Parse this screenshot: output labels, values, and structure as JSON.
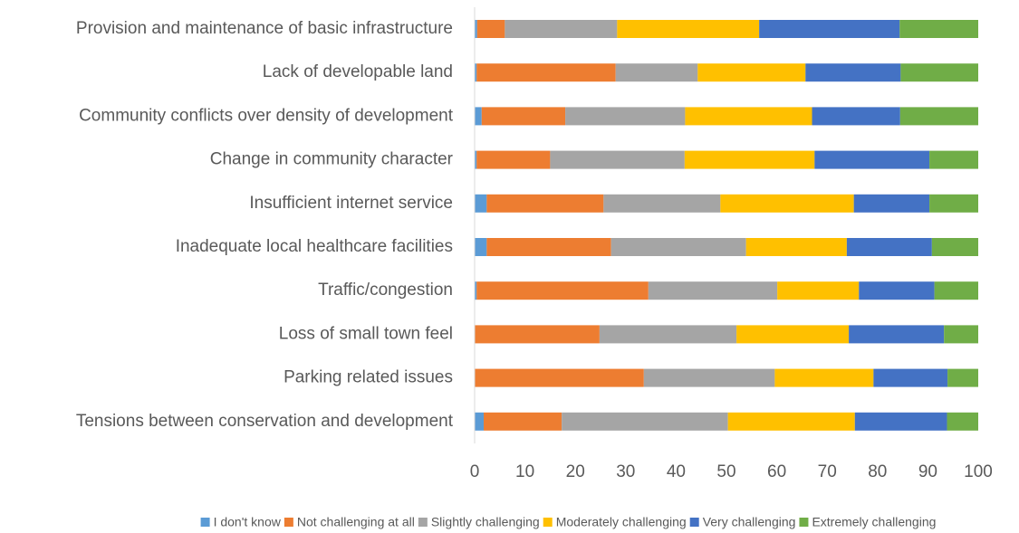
{
  "chart_data": {
    "type": "stacked_barh",
    "categories": [
      "Provision and maintenance of basic infrastructure",
      "Lack of developable land",
      "Community conflicts over  density of development",
      "Change in community character",
      "Insufficient internet service",
      "Inadequate local healthcare facilities",
      "Traffic/congestion",
      "Loss of small town feel",
      "Parking related issues",
      "Tensions between conservation and development"
    ],
    "series": [
      {
        "name": "I don't know",
        "color": "#5b9bd5",
        "values": [
          0.5,
          0.4,
          1.4,
          0.4,
          2.4,
          2.4,
          0.4,
          0,
          0,
          1.8
        ]
      },
      {
        "name": "Not challenging at all",
        "color": "#ed7d31",
        "values": [
          5.5,
          27.6,
          16.6,
          14.6,
          23.2,
          24.7,
          34.1,
          24.8,
          33.6,
          15.5
        ]
      },
      {
        "name": "Slightly challenging",
        "color": "#a5a5a5",
        "values": [
          22.3,
          16.3,
          23.8,
          26.7,
          23.2,
          26.8,
          25.6,
          27.2,
          26,
          33
        ]
      },
      {
        "name": "Moderately challenging",
        "color": "#ffc000",
        "values": [
          28.2,
          21.4,
          25.2,
          25.8,
          26.5,
          20,
          16.2,
          22.3,
          19.6,
          25.2
        ]
      },
      {
        "name": "Very challenging",
        "color": "#4472c4",
        "values": [
          27.9,
          18.9,
          17.5,
          22.8,
          15,
          16.9,
          15,
          18.9,
          14.7,
          18.3
        ]
      },
      {
        "name": "Extremely challenging",
        "color": "#70ad47",
        "values": [
          15.6,
          15.4,
          15.5,
          9.7,
          9.7,
          9.2,
          8.7,
          6.8,
          6.1,
          6.2
        ]
      }
    ],
    "xlim": [
      0,
      100
    ],
    "xticks": [
      0,
      10,
      20,
      30,
      40,
      50,
      60,
      70,
      80,
      90,
      100
    ],
    "legend": "bottom"
  }
}
